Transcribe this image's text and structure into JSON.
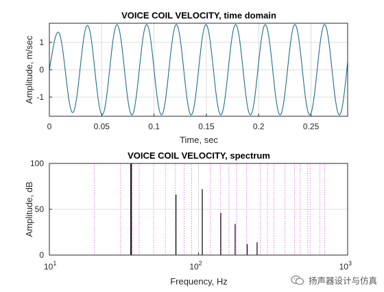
{
  "chart_data": [
    {
      "type": "line",
      "title": "VOICE COIL VELOCITY, time domain",
      "xlabel": "Time, sec",
      "ylabel": "Amplitude, m/sec",
      "xlim": [
        0,
        0.285
      ],
      "ylim": [
        -1.7,
        1.7
      ],
      "xticks": [
        0,
        0.05,
        0.1,
        0.15,
        0.2,
        0.25
      ],
      "xtick_labels": [
        "0",
        "0.05",
        "0.1",
        "0.15",
        "0.2",
        "0.25"
      ],
      "yticks": [
        -1,
        0,
        1
      ],
      "ytick_labels": [
        "-1",
        "0",
        "1"
      ],
      "grid": true,
      "series": [
        {
          "frequency_hz": 35.3,
          "amplitude": 1.65,
          "initial_transient": {
            "first_peak_time": 0.008,
            "first_peak_value": 1.1
          },
          "color": "#1a6e8a"
        }
      ]
    },
    {
      "type": "bar",
      "title": "VOICE COIL VELOCITY, spectrum",
      "xlabel": "Frequency, Hz",
      "ylabel": "Amplitude, dB",
      "xscale": "log",
      "xlim": [
        10,
        1000
      ],
      "ylim": [
        0,
        100
      ],
      "xticks": [
        10,
        100,
        1000
      ],
      "xtick_labels": [
        {
          "base": "10",
          "exp": "1"
        },
        {
          "base": "10",
          "exp": "2"
        },
        {
          "base": "10",
          "exp": "3"
        }
      ],
      "yticks": [
        0,
        50,
        100
      ],
      "ytick_labels": [
        "0",
        "50",
        "100"
      ],
      "grid": true,
      "harmonic_markers_hz": [
        20,
        30,
        36,
        40,
        50,
        60,
        70,
        80,
        90,
        120,
        140,
        160,
        180,
        210,
        260,
        290,
        320,
        380,
        440,
        480,
        540,
        560,
        650,
        700
      ],
      "bars": [
        {
          "x": 35.3,
          "y": 100
        },
        {
          "x": 70.6,
          "y": 66
        },
        {
          "x": 106,
          "y": 72
        },
        {
          "x": 141,
          "y": 46
        },
        {
          "x": 176,
          "y": 34
        },
        {
          "x": 212,
          "y": 12
        },
        {
          "x": 247,
          "y": 14
        }
      ],
      "color": "#000000"
    }
  ],
  "watermark": {
    "text": "扬声器设计与仿真",
    "icon": "wechat-icon"
  },
  "colors": {
    "line": "#1a6e8a",
    "grid": "#dcdcdc",
    "marker": "#e070e0",
    "axis": "#262626"
  }
}
